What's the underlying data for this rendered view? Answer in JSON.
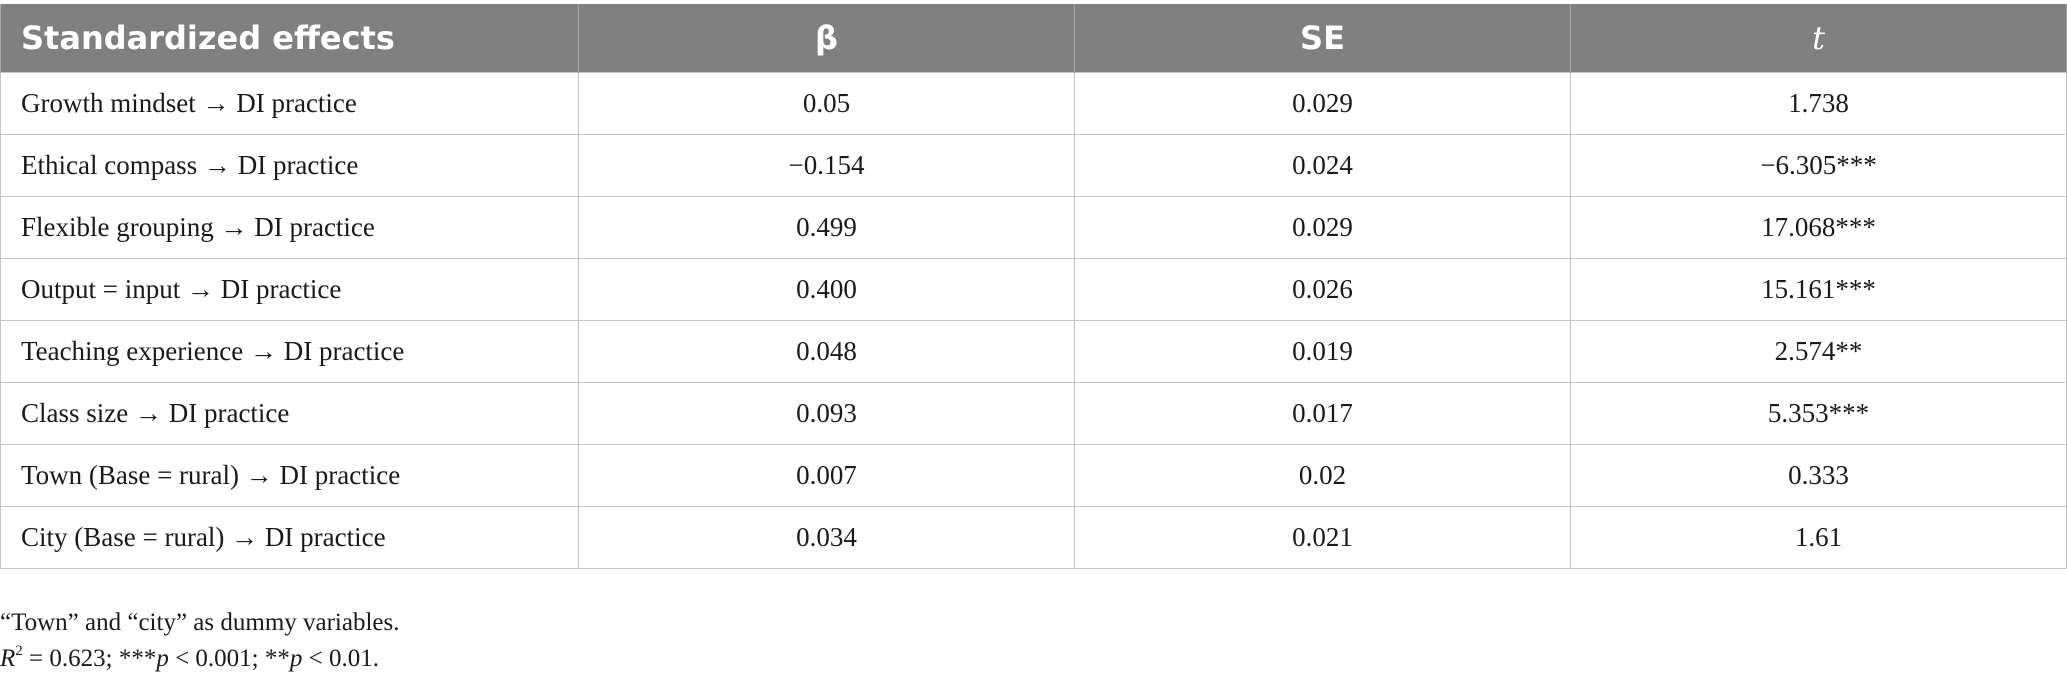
{
  "table": {
    "headers": [
      "Standardized effects",
      "β",
      "SE",
      "t"
    ],
    "rows": [
      [
        "Growth mindset → DI practice",
        "0.05",
        "0.029",
        "1.738"
      ],
      [
        "Ethical compass → DI practice",
        "−0.154",
        "0.024",
        "−6.305***"
      ],
      [
        "Flexible grouping → DI practice",
        "0.499",
        "0.029",
        "17.068***"
      ],
      [
        "Output = input → DI practice",
        "0.400",
        "0.026",
        "15.161***"
      ],
      [
        "Teaching experience → DI practice",
        "0.048",
        "0.019",
        "2.574**"
      ],
      [
        "Class size → DI practice",
        "0.093",
        "0.017",
        "5.353***"
      ],
      [
        "Town (Base = rural) → DI practice",
        "0.007",
        "0.02",
        "0.333"
      ],
      [
        "City (Base = rural) → DI practice",
        "0.034",
        "0.021",
        "1.61"
      ]
    ]
  },
  "notes": {
    "line1": "“Town” and “city” as dummy variables.",
    "r_symbol": "R",
    "r_sup": "2",
    "r_value": " = 0.623; ***",
    "p1": "p",
    "p1_rest": " < 0.001; **",
    "p2": "p",
    "p2_rest": " < 0.01."
  }
}
